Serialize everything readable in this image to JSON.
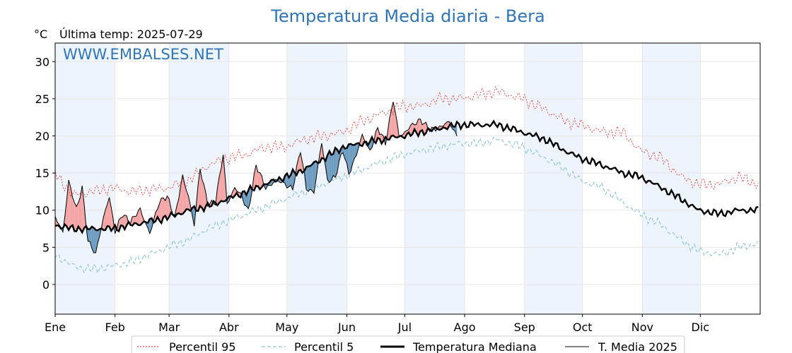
{
  "chart_data": {
    "type": "line",
    "title": "Temperatura Media diaria - Bera",
    "unit_label": "°C",
    "last_temp_label": "Última temp: 2025-07-29",
    "watermark": "WWW.EMBALSES.NET",
    "ylim": [
      -4,
      32.5
    ],
    "yticks": [
      0,
      5,
      10,
      15,
      20,
      25,
      30
    ],
    "months": [
      "Ene",
      "Feb",
      "Mar",
      "Abr",
      "May",
      "Jun",
      "Jul",
      "Ago",
      "Sep",
      "Oct",
      "Nov",
      "Dic"
    ],
    "grid": true,
    "legend_position": "bottom",
    "colors": {
      "p95": "#e8231f",
      "p5": "#88c3d6",
      "median": "#000000",
      "current": "#000000",
      "above_fill": "#f4a5a5",
      "below_fill": "#6e9cc0",
      "title": "#2f74b5",
      "band": "#eef4fb"
    },
    "legend": [
      {
        "key": "p95",
        "label": "Percentil 95"
      },
      {
        "key": "p5",
        "label": "Percentil 5"
      },
      {
        "key": "median",
        "label": "Temperatura Mediana"
      },
      {
        "key": "current",
        "label": "T. Media 2025"
      }
    ],
    "series_keypoints": {
      "p95": [
        [
          1,
          15
        ],
        [
          10,
          12
        ],
        [
          20,
          12.5
        ],
        [
          31,
          13
        ],
        [
          40,
          12.5
        ],
        [
          59,
          13
        ],
        [
          70,
          14
        ],
        [
          80,
          16
        ],
        [
          90,
          17
        ],
        [
          100,
          17.5
        ],
        [
          110,
          18.5
        ],
        [
          120,
          18.5
        ],
        [
          130,
          19.5
        ],
        [
          140,
          20
        ],
        [
          150,
          20.5
        ],
        [
          160,
          22
        ],
        [
          170,
          23
        ],
        [
          181,
          24
        ],
        [
          190,
          24
        ],
        [
          200,
          25
        ],
        [
          210,
          25
        ],
        [
          220,
          25.5
        ],
        [
          230,
          26
        ],
        [
          243,
          25
        ],
        [
          255,
          23.5
        ],
        [
          265,
          22
        ],
        [
          273,
          21.5
        ],
        [
          285,
          20.5
        ],
        [
          295,
          20.5
        ],
        [
          304,
          18
        ],
        [
          315,
          17
        ],
        [
          325,
          14.5
        ],
        [
          334,
          13.5
        ],
        [
          345,
          13.5
        ],
        [
          355,
          14.5
        ],
        [
          365,
          13.5
        ]
      ],
      "p5": [
        [
          1,
          4
        ],
        [
          10,
          2.5
        ],
        [
          20,
          2
        ],
        [
          31,
          2.5
        ],
        [
          40,
          3
        ],
        [
          50,
          4
        ],
        [
          59,
          5
        ],
        [
          70,
          6
        ],
        [
          80,
          7.5
        ],
        [
          90,
          8.5
        ],
        [
          100,
          9.5
        ],
        [
          110,
          10.5
        ],
        [
          120,
          11.5
        ],
        [
          130,
          12.5
        ],
        [
          140,
          13.5
        ],
        [
          150,
          14.5
        ],
        [
          160,
          15.5
        ],
        [
          170,
          16.5
        ],
        [
          181,
          17.5
        ],
        [
          190,
          18
        ],
        [
          200,
          18.5
        ],
        [
          210,
          19
        ],
        [
          220,
          19
        ],
        [
          230,
          19.5
        ],
        [
          243,
          18.5
        ],
        [
          255,
          17
        ],
        [
          265,
          15.5
        ],
        [
          273,
          14
        ],
        [
          285,
          13
        ],
        [
          295,
          11
        ],
        [
          304,
          9.5
        ],
        [
          315,
          8
        ],
        [
          325,
          6
        ],
        [
          334,
          4.5
        ],
        [
          345,
          4
        ],
        [
          355,
          5
        ],
        [
          365,
          5.5
        ]
      ],
      "median": [
        [
          1,
          8
        ],
        [
          10,
          7.5
        ],
        [
          20,
          7.5
        ],
        [
          31,
          7.5
        ],
        [
          40,
          8
        ],
        [
          50,
          8.5
        ],
        [
          59,
          9
        ],
        [
          70,
          10
        ],
        [
          80,
          10.5
        ],
        [
          90,
          11.5
        ],
        [
          100,
          12.5
        ],
        [
          110,
          13.5
        ],
        [
          120,
          14.5
        ],
        [
          130,
          15.5
        ],
        [
          140,
          17
        ],
        [
          150,
          18.5
        ],
        [
          160,
          19
        ],
        [
          170,
          19.5
        ],
        [
          181,
          20
        ],
        [
          190,
          20.5
        ],
        [
          200,
          21
        ],
        [
          210,
          21.5
        ],
        [
          220,
          21.5
        ],
        [
          230,
          21.5
        ],
        [
          243,
          20.5
        ],
        [
          255,
          19.5
        ],
        [
          265,
          18
        ],
        [
          273,
          17
        ],
        [
          285,
          16
        ],
        [
          295,
          15
        ],
        [
          304,
          14.5
        ],
        [
          315,
          13
        ],
        [
          325,
          11.5
        ],
        [
          334,
          10
        ],
        [
          345,
          9.5
        ],
        [
          355,
          10
        ],
        [
          365,
          10
        ]
      ],
      "current": [
        [
          1,
          9
        ],
        [
          5,
          7
        ],
        [
          8,
          14
        ],
        [
          12,
          10
        ],
        [
          15,
          13
        ],
        [
          18,
          6
        ],
        [
          22,
          4
        ],
        [
          26,
          9
        ],
        [
          29,
          12
        ],
        [
          32,
          7
        ],
        [
          36,
          9.5
        ],
        [
          40,
          8.5
        ],
        [
          45,
          10
        ],
        [
          50,
          7
        ],
        [
          55,
          11
        ],
        [
          59,
          12
        ],
        [
          63,
          9
        ],
        [
          67,
          14.5
        ],
        [
          70,
          12
        ],
        [
          73,
          8
        ],
        [
          76,
          15.5
        ],
        [
          80,
          11
        ],
        [
          84,
          11
        ],
        [
          88,
          17.5
        ],
        [
          90,
          11
        ],
        [
          94,
          13
        ],
        [
          97,
          12
        ],
        [
          101,
          10
        ],
        [
          105,
          16
        ],
        [
          110,
          13
        ],
        [
          115,
          14
        ],
        [
          120,
          13.5
        ],
        [
          124,
          13
        ],
        [
          128,
          18
        ],
        [
          131,
          13
        ],
        [
          135,
          12.5
        ],
        [
          139,
          19
        ],
        [
          142,
          14
        ],
        [
          146,
          14.5
        ],
        [
          150,
          18
        ],
        [
          153,
          15
        ],
        [
          157,
          17.5
        ],
        [
          160,
          20
        ],
        [
          164,
          18
        ],
        [
          168,
          21
        ],
        [
          172,
          19
        ],
        [
          176,
          25
        ],
        [
          179,
          20
        ],
        [
          181,
          20
        ],
        [
          185,
          21.5
        ],
        [
          190,
          22
        ],
        [
          195,
          21
        ],
        [
          200,
          21
        ],
        [
          205,
          22
        ],
        [
          209,
          20
        ]
      ]
    }
  }
}
